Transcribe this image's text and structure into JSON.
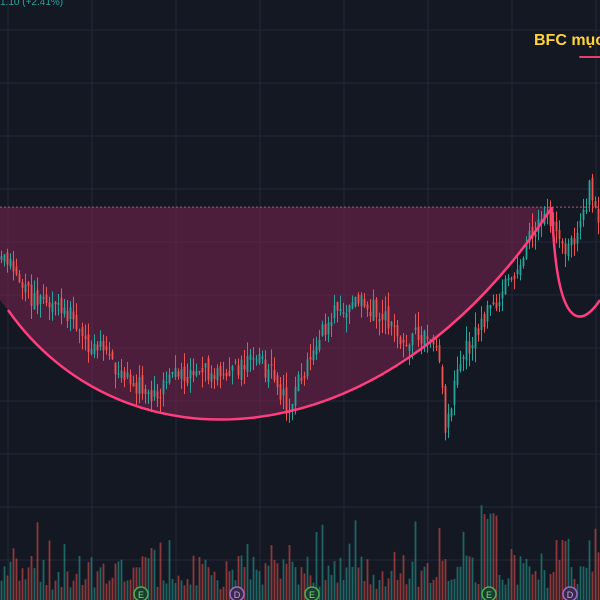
{
  "header": {
    "change_text": "1.10 (+2.41%)",
    "annotation_title": "BFC mục"
  },
  "colors": {
    "background": "#141823",
    "grid": "#232838",
    "up": "#26a69a",
    "down": "#ef5350",
    "pattern_curve": "#ff3d7f",
    "pattern_fill": "#7a2550",
    "title": "#ffd43b",
    "resistance_line": "#c0566f"
  },
  "chart_data": {
    "type": "candlestick",
    "title": "BFC mục",
    "pattern": "cup and handle",
    "resistance_level": 100,
    "price_range": [
      70,
      105
    ],
    "volume_range": [
      0,
      100
    ],
    "events": [
      {
        "marker": "E",
        "at_fraction": 0.235
      },
      {
        "marker": "D",
        "at_fraction": 0.395
      },
      {
        "marker": "E",
        "at_fraction": 0.52
      },
      {
        "marker": "E",
        "at_fraction": 0.815
      },
      {
        "marker": "D",
        "at_fraction": 0.95
      }
    ],
    "close_keypoints": [
      [
        0,
        95
      ],
      [
        0.02,
        93
      ],
      [
        0.05,
        90.5
      ],
      [
        0.08,
        90
      ],
      [
        0.11,
        89
      ],
      [
        0.14,
        86
      ],
      [
        0.18,
        84
      ],
      [
        0.22,
        81.5
      ],
      [
        0.25,
        80
      ],
      [
        0.29,
        82
      ],
      [
        0.33,
        82.5
      ],
      [
        0.37,
        82
      ],
      [
        0.4,
        83
      ],
      [
        0.43,
        84
      ],
      [
        0.46,
        81.5
      ],
      [
        0.48,
        79
      ],
      [
        0.51,
        83
      ],
      [
        0.54,
        87
      ],
      [
        0.56,
        89.5
      ],
      [
        0.6,
        90
      ],
      [
        0.63,
        89
      ],
      [
        0.65,
        87.5
      ],
      [
        0.68,
        86
      ],
      [
        0.71,
        86.5
      ],
      [
        0.73,
        85.5
      ],
      [
        0.745,
        76
      ],
      [
        0.76,
        81
      ],
      [
        0.78,
        85
      ],
      [
        0.8,
        87
      ],
      [
        0.82,
        89.5
      ],
      [
        0.85,
        92
      ],
      [
        0.88,
        96
      ],
      [
        0.91,
        100
      ],
      [
        0.93,
        97
      ],
      [
        0.95,
        95
      ],
      [
        0.97,
        98
      ],
      [
        0.985,
        102
      ],
      [
        1.0,
        99
      ]
    ]
  }
}
